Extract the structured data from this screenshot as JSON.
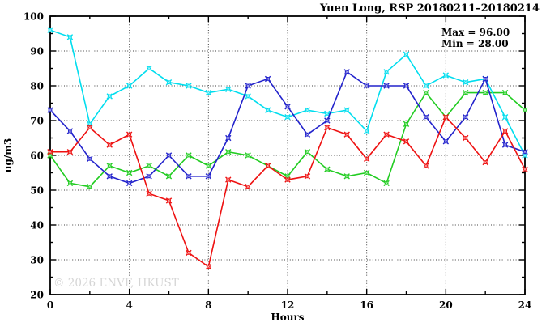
{
  "chart_data": {
    "type": "line",
    "title": "Yuen Long, RSP 20180211–20180214",
    "xlabel": "Hours",
    "ylabel": "ug/m3",
    "annotations": {
      "max_label": "Max = 96.00",
      "min_label": "Min = 28.00"
    },
    "watermark": "© 2026 ENVF, HKUST",
    "xlim": [
      0,
      24
    ],
    "ylim": [
      20,
      100
    ],
    "x_ticks": [
      0,
      4,
      8,
      12,
      16,
      20,
      24
    ],
    "y_ticks": [
      20,
      30,
      40,
      50,
      60,
      70,
      80,
      90,
      100
    ],
    "x_minor_step": 2,
    "y_minor_step": 5,
    "grid_x": [
      4,
      8,
      12,
      16,
      20
    ],
    "grid_y": [
      30,
      40,
      50,
      60,
      70,
      80,
      90
    ],
    "grid_on": true,
    "legend": "none",
    "x": [
      0,
      1,
      2,
      3,
      4,
      5,
      6,
      7,
      8,
      9,
      10,
      11,
      12,
      13,
      14,
      15,
      16,
      17,
      18,
      19,
      20,
      21,
      22,
      23,
      24
    ],
    "series": [
      {
        "name": "series-green",
        "color": "#22CC22",
        "values": [
          60,
          52,
          51,
          57,
          55,
          57,
          54,
          60,
          57,
          61,
          60,
          57,
          54,
          61,
          56,
          54,
          55,
          52,
          69,
          78,
          71,
          78,
          78,
          78,
          73
        ]
      },
      {
        "name": "series-cyan",
        "color": "#00DDEE",
        "values": [
          96,
          94,
          69,
          77,
          80,
          85,
          81,
          80,
          78,
          79,
          77,
          73,
          71,
          73,
          72,
          73,
          67,
          84,
          89,
          80,
          83,
          81,
          82,
          71,
          60
        ]
      },
      {
        "name": "series-blue",
        "color": "#2222CC",
        "values": [
          73,
          67,
          59,
          54,
          52,
          54,
          60,
          54,
          54,
          65,
          80,
          82,
          74,
          66,
          70,
          84,
          80,
          80,
          80,
          71,
          64,
          71,
          82,
          63,
          61
        ]
      },
      {
        "name": "series-red",
        "color": "#EE1111",
        "values": [
          61,
          61,
          68,
          63,
          66,
          49,
          47,
          32,
          28,
          53,
          51,
          57,
          53,
          54,
          68,
          66,
          59,
          66,
          64,
          57,
          71,
          65,
          58,
          67,
          56
        ]
      }
    ]
  }
}
